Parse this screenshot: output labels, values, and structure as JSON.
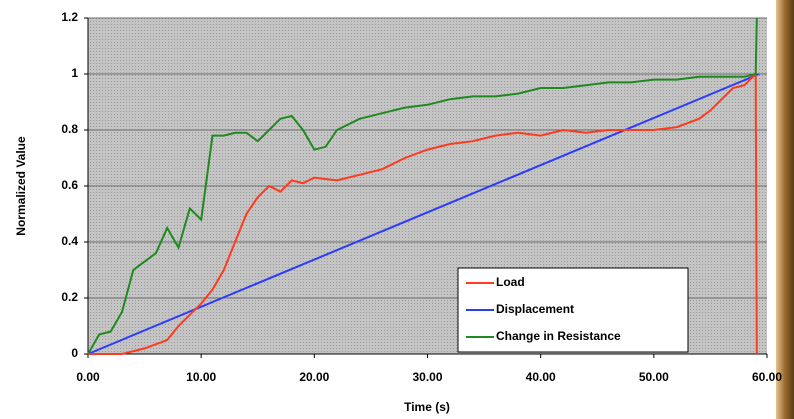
{
  "chart_data": {
    "type": "line",
    "ylabel": "Normalized Value",
    "xlabel": "Time (s)",
    "xlim": [
      0,
      60
    ],
    "ylim": [
      0,
      1.2
    ],
    "xticks": [
      {
        "value": 0,
        "label": "0.00"
      },
      {
        "value": 10,
        "label": "10.00"
      },
      {
        "value": 20,
        "label": "20.00"
      },
      {
        "value": 30,
        "label": "30.00"
      },
      {
        "value": 40,
        "label": "40.00"
      },
      {
        "value": 50,
        "label": "50.00"
      },
      {
        "value": 60,
        "label": "60.00"
      }
    ],
    "yticks": [
      0,
      0.2,
      0.4,
      0.6,
      0.8,
      1,
      1.2
    ],
    "grid": true,
    "legend": "lower right",
    "series": [
      {
        "name": "Load",
        "color": "#ff3b1f",
        "x": [
          0,
          3,
          5,
          7,
          8,
          10,
          11,
          12,
          13,
          14,
          15,
          16,
          17,
          18,
          19,
          20,
          22,
          24,
          26,
          28,
          30,
          32,
          34,
          36,
          38,
          40,
          42,
          44,
          46,
          48,
          50,
          52,
          54,
          55,
          56,
          57,
          58,
          58.5,
          59,
          59.1
        ],
        "values": [
          0,
          0,
          0.02,
          0.05,
          0.1,
          0.18,
          0.23,
          0.3,
          0.4,
          0.5,
          0.56,
          0.6,
          0.58,
          0.62,
          0.61,
          0.63,
          0.62,
          0.64,
          0.66,
          0.7,
          0.73,
          0.75,
          0.76,
          0.78,
          0.79,
          0.78,
          0.8,
          0.79,
          0.8,
          0.8,
          0.8,
          0.81,
          0.84,
          0.87,
          0.91,
          0.95,
          0.96,
          0.98,
          1,
          0
        ]
      },
      {
        "name": "Displacement",
        "color": "#2b3cff",
        "x": [
          0,
          59.3
        ],
        "values": [
          0,
          1
        ]
      },
      {
        "name": "Change in Resistance",
        "color": "#1f8a1f",
        "x": [
          0,
          1,
          2,
          3,
          4,
          5,
          6,
          7,
          8,
          9,
          10,
          11,
          12,
          13,
          14,
          15,
          16,
          17,
          18,
          19,
          20,
          21,
          22,
          24,
          26,
          28,
          30,
          32,
          34,
          36,
          38,
          40,
          42,
          44,
          46,
          48,
          50,
          52,
          54,
          56,
          58,
          59,
          59.1
        ],
        "values": [
          0,
          0.07,
          0.08,
          0.15,
          0.3,
          0.33,
          0.36,
          0.45,
          0.38,
          0.52,
          0.48,
          0.78,
          0.78,
          0.79,
          0.79,
          0.76,
          0.8,
          0.84,
          0.85,
          0.8,
          0.73,
          0.74,
          0.8,
          0.84,
          0.86,
          0.88,
          0.89,
          0.91,
          0.92,
          0.92,
          0.93,
          0.95,
          0.95,
          0.96,
          0.97,
          0.97,
          0.98,
          0.98,
          0.99,
          0.99,
          0.99,
          1,
          1.2
        ]
      }
    ]
  }
}
